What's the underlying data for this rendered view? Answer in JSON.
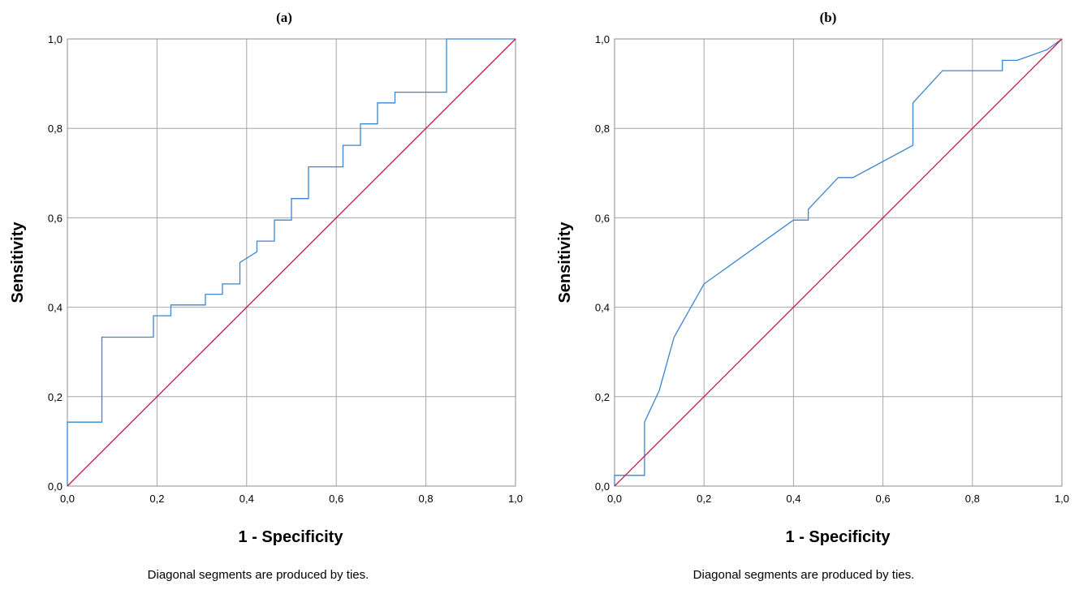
{
  "chart_data": [
    {
      "type": "line",
      "title": "(a)",
      "xlabel": "1 - Specificity",
      "ylabel": "Sensitivity",
      "xlim": [
        0,
        1
      ],
      "ylim": [
        0,
        1
      ],
      "ticks": [
        "0,0",
        "0,2",
        "0,4",
        "0,6",
        "0,8",
        "1,0"
      ],
      "tick_values": [
        0,
        0.2,
        0.4,
        0.6,
        0.8,
        1.0
      ],
      "grid": true,
      "footnote": "Diagonal segments are produced by ties.",
      "colors": {
        "roc": "#3a86d0",
        "reference": "#c8174a"
      },
      "series": [
        {
          "values_xy": [
            [
              0,
              0
            ],
            [
              0,
              0.143
            ],
            [
              0.077,
              0.143
            ],
            [
              0.077,
              0.333
            ],
            [
              0.192,
              0.333
            ],
            [
              0.192,
              0.381
            ],
            [
              0.231,
              0.381
            ],
            [
              0.231,
              0.405
            ],
            [
              0.308,
              0.405
            ],
            [
              0.308,
              0.429
            ],
            [
              0.346,
              0.429
            ],
            [
              0.346,
              0.452
            ],
            [
              0.385,
              0.452
            ],
            [
              0.385,
              0.5
            ],
            [
              0.423,
              0.524
            ],
            [
              0.423,
              0.548
            ],
            [
              0.462,
              0.548
            ],
            [
              0.462,
              0.595
            ],
            [
              0.5,
              0.595
            ],
            [
              0.5,
              0.643
            ],
            [
              0.538,
              0.643
            ],
            [
              0.538,
              0.714
            ],
            [
              0.615,
              0.714
            ],
            [
              0.615,
              0.762
            ],
            [
              0.654,
              0.762
            ],
            [
              0.654,
              0.81
            ],
            [
              0.692,
              0.81
            ],
            [
              0.692,
              0.857
            ],
            [
              0.731,
              0.857
            ],
            [
              0.731,
              0.881
            ],
            [
              0.846,
              0.881
            ],
            [
              0.846,
              1.0
            ],
            [
              1.0,
              1.0
            ]
          ]
        },
        {
          "values_xy": [
            [
              0,
              0
            ],
            [
              1,
              1
            ]
          ]
        }
      ]
    },
    {
      "type": "line",
      "title": "(b)",
      "xlabel": "1 - Specificity",
      "ylabel": "Sensitivity",
      "xlim": [
        0,
        1
      ],
      "ylim": [
        0,
        1
      ],
      "ticks": [
        "0,0",
        "0,2",
        "0,4",
        "0,6",
        "0,8",
        "1,0"
      ],
      "tick_values": [
        0,
        0.2,
        0.4,
        0.6,
        0.8,
        1.0
      ],
      "grid": true,
      "footnote": "Diagonal segments are produced by ties.",
      "colors": {
        "roc": "#3a86d0",
        "reference": "#c8174a"
      },
      "series": [
        {
          "values_xy": [
            [
              0,
              0
            ],
            [
              0,
              0.024
            ],
            [
              0.067,
              0.024
            ],
            [
              0.067,
              0.143
            ],
            [
              0.1,
              0.214
            ],
            [
              0.133,
              0.333
            ],
            [
              0.2,
              0.452
            ],
            [
              0.4,
              0.595
            ],
            [
              0.433,
              0.595
            ],
            [
              0.433,
              0.619
            ],
            [
              0.5,
              0.69
            ],
            [
              0.533,
              0.69
            ],
            [
              0.667,
              0.762
            ],
            [
              0.667,
              0.857
            ],
            [
              0.733,
              0.929
            ],
            [
              0.867,
              0.929
            ],
            [
              0.867,
              0.952
            ],
            [
              0.9,
              0.952
            ],
            [
              0.967,
              0.976
            ],
            [
              1.0,
              1.0
            ]
          ]
        },
        {
          "values_xy": [
            [
              0,
              0
            ],
            [
              1,
              1
            ]
          ]
        }
      ]
    }
  ]
}
